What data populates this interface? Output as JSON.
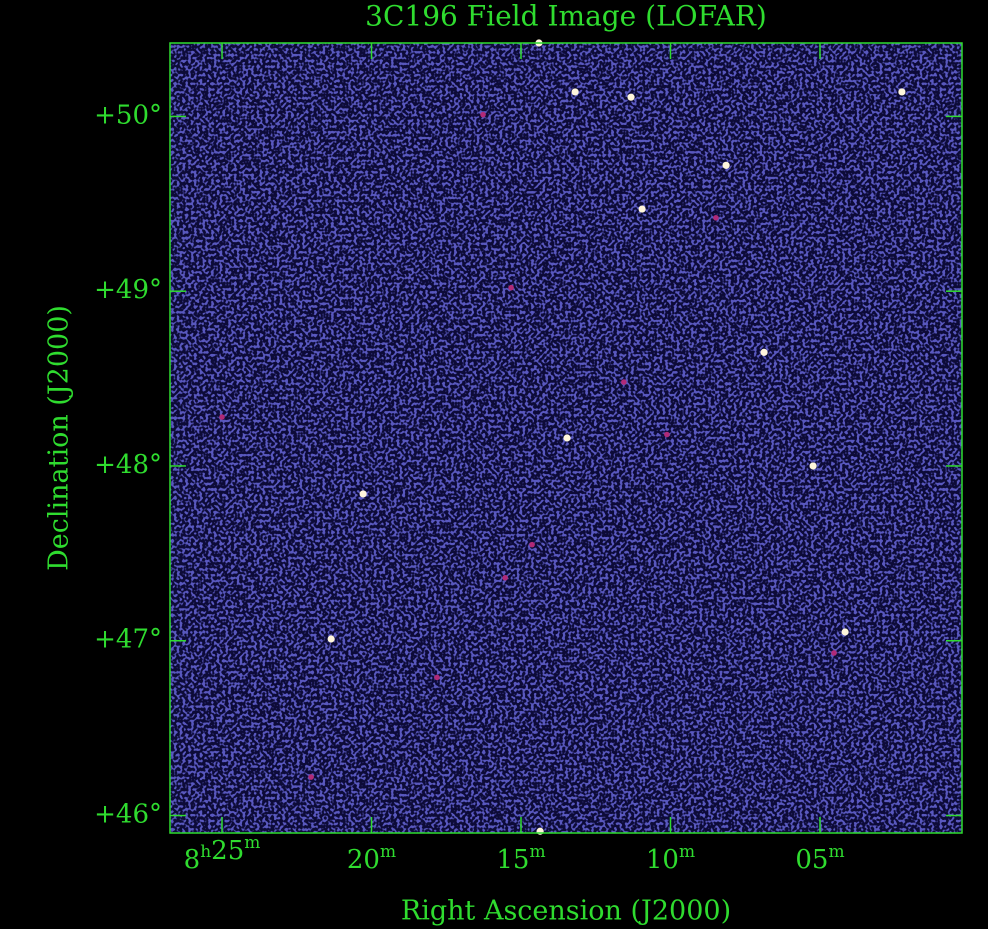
{
  "chart_data": {
    "type": "scatter",
    "title": "3C196 Field Image (LOFAR)",
    "x_label": "Right Ascension (J2000)",
    "y_label": "Declination (J2000)",
    "xlim": [
      26.74,
      0.25
    ],
    "ylim": [
      45.9,
      50.42
    ],
    "xticks": [
      {
        "value": 25,
        "label": "8h25m"
      },
      {
        "value": 20,
        "label": "20m"
      },
      {
        "value": 15,
        "label": "15m"
      },
      {
        "value": 10,
        "label": "10m"
      },
      {
        "value": 5,
        "label": "05m"
      }
    ],
    "yticks": [
      {
        "value": 46,
        "label": "+46°"
      },
      {
        "value": 47,
        "label": "+47°"
      },
      {
        "value": 48,
        "label": "+48°"
      },
      {
        "value": 49,
        "label": "+49°"
      },
      {
        "value": 50,
        "label": "+50°"
      }
    ],
    "axis_color": "#2fdc2f",
    "background": "#0d0b38",
    "series": [
      {
        "color": "#fff6dc",
        "x": [
          13.46,
          21.35,
          6.87,
          2.26,
          10.95,
          13.19,
          11.32,
          8.14,
          5.23,
          4.16,
          20.28,
          14.36,
          14.4
        ],
        "values": [
          48.16,
          47.01,
          48.65,
          50.14,
          49.47,
          50.14,
          50.11,
          49.72,
          48.0,
          47.05,
          47.84,
          45.91,
          50.42
        ]
      },
      {
        "color": "#b02a78",
        "x": [
          16.27,
          25.0,
          11.56,
          15.33,
          15.53,
          14.63,
          17.81,
          22.02,
          4.53,
          10.12,
          8.48
        ],
        "values": [
          50.01,
          48.28,
          48.48,
          49.02,
          47.36,
          47.55,
          46.79,
          46.22,
          46.93,
          48.18,
          49.42
        ]
      }
    ]
  }
}
